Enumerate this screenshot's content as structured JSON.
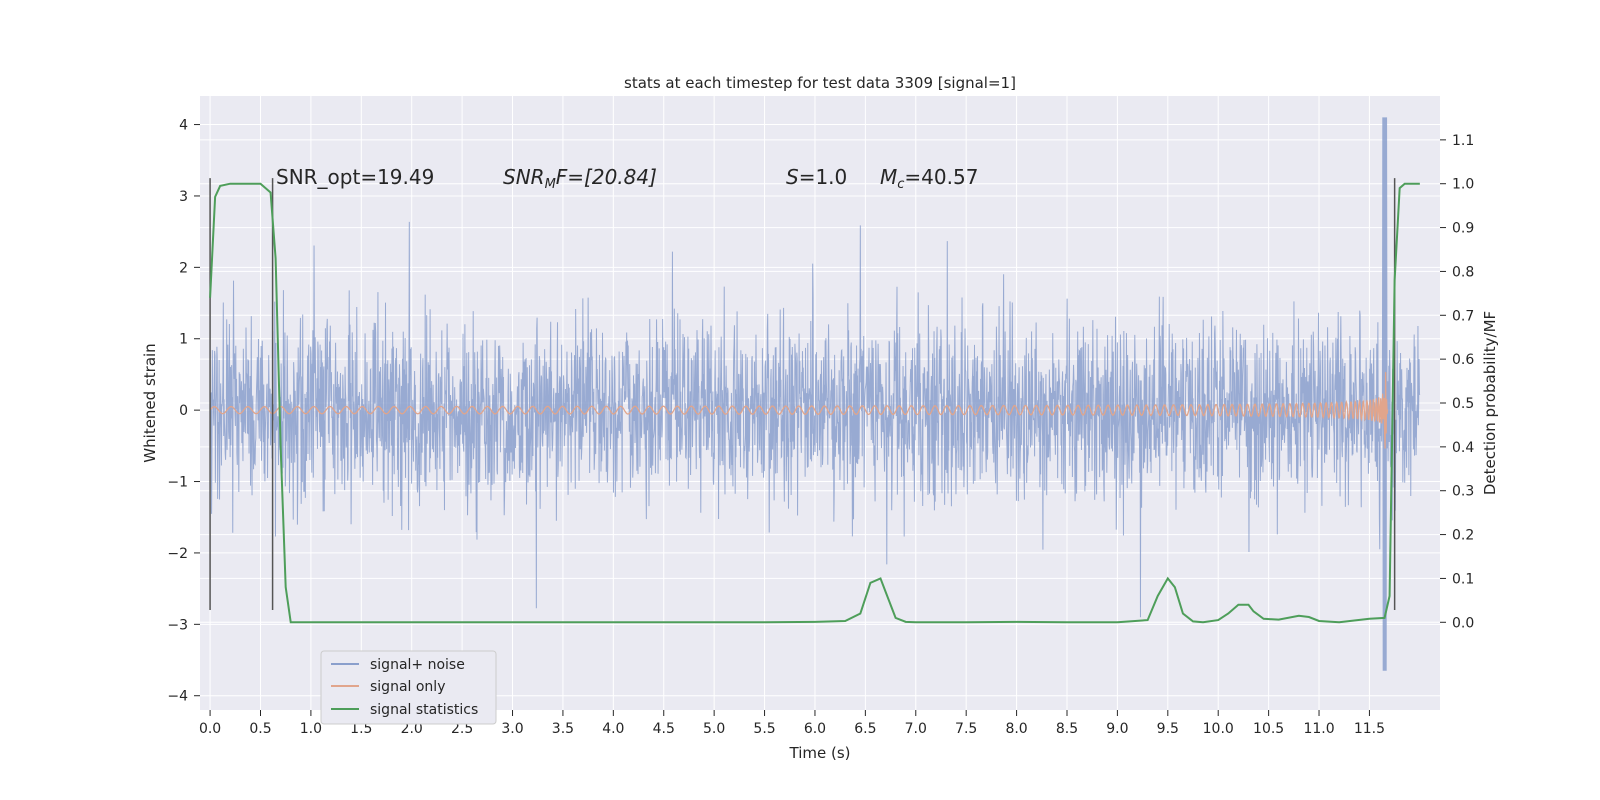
{
  "chart_data": {
    "type": "line",
    "title": "stats at each timestep for test data 3309 [signal=1]",
    "xlabel": "Time (s)",
    "ylabel": "Whitened strain",
    "ylabel_right": "Detection probability/MF",
    "xlim": [
      -0.1,
      12.2
    ],
    "ylim": [
      -4.2,
      4.4
    ],
    "ylim_right": [
      -0.2,
      1.2
    ],
    "x_ticks": [
      "0.0",
      "0.5",
      "1.0",
      "1.5",
      "2.0",
      "2.5",
      "3.0",
      "3.5",
      "4.0",
      "4.5",
      "5.0",
      "5.5",
      "6.0",
      "6.5",
      "7.0",
      "7.5",
      "8.0",
      "8.5",
      "9.0",
      "9.5",
      "10.0",
      "10.5",
      "11.0",
      "11.5"
    ],
    "y_ticks": [
      "4",
      "3",
      "2",
      "1",
      "0",
      "−1",
      "−2",
      "−3",
      "−4"
    ],
    "y_ticks_right": [
      "1.1",
      "1.0",
      "0.9",
      "0.8",
      "0.7",
      "0.6",
      "0.5",
      "0.4",
      "0.3",
      "0.2",
      "0.1",
      "0.0"
    ],
    "grid": true,
    "legend_position": "lower-left",
    "colors": {
      "background": "#EAEAF2",
      "grid": "#ffffff",
      "noise": "#8A9FCC",
      "signal": "#E1A58C",
      "stats": "#4E9E5A",
      "markers": "#555555"
    },
    "annotations": {
      "snr_opt": "SNR_opt=19.49",
      "snr_mf_prefix": "SNR",
      "snr_mf_sub": "M",
      "snr_mf_suffix": "F=[20.84]",
      "s_prefix": "S",
      "s_suffix": "=1.0",
      "mc_prefix": "M",
      "mc_sub": "c",
      "mc_suffix": "=40.57"
    },
    "series": [
      {
        "name": "signal+ noise",
        "kind": "noise",
        "x_range": [
          0.0,
          12.0
        ],
        "envelope_approx": [
          -1.2,
          1.3
        ],
        "peak_max": 4.1,
        "peak_min": -3.65
      },
      {
        "name": "signal only",
        "kind": "chirp",
        "x_range": [
          0.0,
          11.68
        ],
        "merger_x": 11.65,
        "peak_max": 3.35,
        "peak_min": -3.45
      },
      {
        "name": "signal statistics",
        "axis": "right",
        "x": [
          0.0,
          0.05,
          0.1,
          0.2,
          0.3,
          0.4,
          0.5,
          0.55,
          0.6,
          0.65,
          0.7,
          0.75,
          0.8,
          0.9,
          1.0,
          2.0,
          3.0,
          4.0,
          5.0,
          5.5,
          6.0,
          6.3,
          6.45,
          6.55,
          6.65,
          6.7,
          6.8,
          6.9,
          7.0,
          7.5,
          8.0,
          8.5,
          9.0,
          9.3,
          9.4,
          9.5,
          9.57,
          9.65,
          9.75,
          9.85,
          10.0,
          10.1,
          10.2,
          10.3,
          10.35,
          10.45,
          10.6,
          10.8,
          10.9,
          11.0,
          11.2,
          11.5,
          11.65,
          11.7,
          11.75,
          11.8,
          11.85,
          11.9,
          12.0
        ],
        "y": [
          0.74,
          0.97,
          0.995,
          1.0,
          1.0,
          1.0,
          1.0,
          0.99,
          0.98,
          0.83,
          0.4,
          0.08,
          0.0,
          0.0,
          0.0,
          0.0,
          0.0,
          0.0,
          0.0,
          0.0,
          0.001,
          0.003,
          0.02,
          0.09,
          0.1,
          0.07,
          0.01,
          0.001,
          0.0,
          0.0,
          0.001,
          0.0,
          0.0,
          0.005,
          0.06,
          0.1,
          0.08,
          0.02,
          0.002,
          0.0,
          0.005,
          0.02,
          0.04,
          0.04,
          0.025,
          0.008,
          0.006,
          0.015,
          0.012,
          0.003,
          0.0,
          0.008,
          0.01,
          0.06,
          0.78,
          0.99,
          1.0,
          1.0,
          1.0
        ]
      }
    ],
    "vertical_markers": [
      {
        "x": 0.0,
        "ymin": -2.8,
        "ymax": 3.25
      },
      {
        "x": 0.62,
        "ymin": -2.8,
        "ymax": 3.25
      },
      {
        "x": 11.75,
        "ymin": -2.8,
        "ymax": 3.25
      }
    ]
  }
}
